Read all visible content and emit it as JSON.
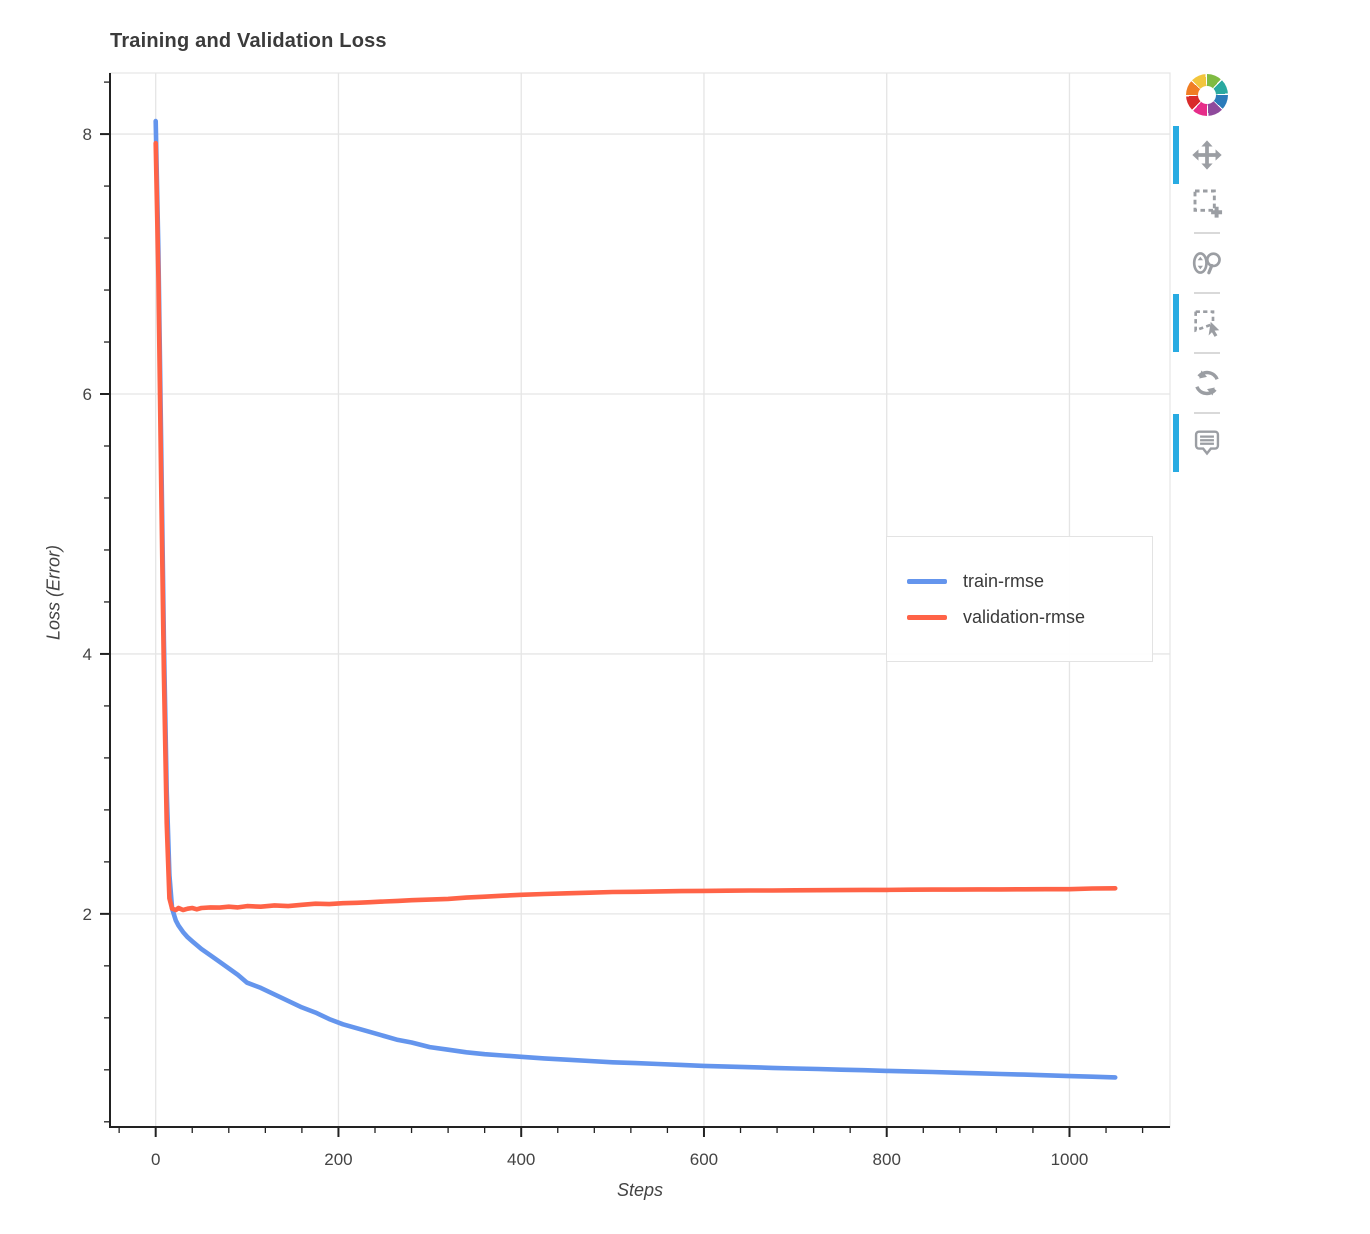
{
  "title": "Training and Validation Loss",
  "colors": {
    "grid": "#e5e5e5",
    "outline": "#e5e5e5",
    "axis_line": "#222222",
    "tick_label": "#444444",
    "title_text": "#3b3b3b",
    "toolbar_icon": "#9b9ea3"
  },
  "legend": {
    "items": [
      {
        "label": "train-rmse"
      },
      {
        "label": "validation-rmse"
      }
    ]
  },
  "toolbar": {
    "active_color": "#28abe2",
    "tools": [
      {
        "name": "pan",
        "active": true
      },
      {
        "name": "box-zoom",
        "active": false
      },
      {
        "name": "wheel-zoom",
        "active": false
      },
      {
        "name": "box-select",
        "active": true
      },
      {
        "name": "reset",
        "active": false
      },
      {
        "name": "hover",
        "active": true
      }
    ]
  },
  "chart_data": {
    "type": "line",
    "title": "Training and Validation Loss",
    "xlabel": "Steps",
    "ylabel": "Loss (Error)",
    "xlim": [
      -50,
      1110
    ],
    "ylim": [
      0.36,
      8.47
    ],
    "xticks": [
      0,
      200,
      400,
      600,
      800,
      1000
    ],
    "yticks": [
      2,
      4,
      6,
      8
    ],
    "xtick_labels": [
      "0",
      "200",
      "400",
      "600",
      "800",
      "1000"
    ],
    "ytick_labels": [
      "2",
      "4",
      "6",
      "8"
    ],
    "x_minor_dtick": 40,
    "y_minor_dtick": 0.4,
    "grid": true,
    "legend_position": "inside-right",
    "x": [
      0,
      3,
      6,
      9,
      12,
      15,
      18,
      22,
      25,
      30,
      35,
      40,
      45,
      50,
      60,
      70,
      80,
      90,
      100,
      115,
      130,
      145,
      160,
      175,
      190,
      205,
      220,
      235,
      250,
      265,
      280,
      300,
      320,
      340,
      360,
      380,
      400,
      425,
      450,
      475,
      500,
      525,
      550,
      575,
      600,
      625,
      650,
      675,
      700,
      725,
      750,
      775,
      800,
      825,
      850,
      875,
      900,
      925,
      950,
      975,
      1000,
      1025,
      1050
    ],
    "series": [
      {
        "name": "train-rmse",
        "color": "#6495ED",
        "values": [
          8.1,
          7.1,
          5.6,
          4.1,
          2.95,
          2.3,
          2.04,
          1.95,
          1.91,
          1.86,
          1.82,
          1.79,
          1.76,
          1.73,
          1.68,
          1.63,
          1.58,
          1.53,
          1.47,
          1.43,
          1.38,
          1.33,
          1.28,
          1.24,
          1.19,
          1.15,
          1.12,
          1.09,
          1.06,
          1.03,
          1.01,
          0.975,
          0.955,
          0.935,
          0.92,
          0.91,
          0.9,
          0.888,
          0.878,
          0.868,
          0.858,
          0.852,
          0.845,
          0.838,
          0.83,
          0.825,
          0.82,
          0.815,
          0.81,
          0.806,
          0.801,
          0.797,
          0.792,
          0.788,
          0.783,
          0.778,
          0.773,
          0.768,
          0.763,
          0.758,
          0.752,
          0.747,
          0.742
        ]
      },
      {
        "name": "validation-rmse",
        "color": "#FF6347",
        "values": [
          7.93,
          6.9,
          5.3,
          3.85,
          2.7,
          2.12,
          2.04,
          2.03,
          2.045,
          2.03,
          2.04,
          2.045,
          2.035,
          2.045,
          2.05,
          2.048,
          2.055,
          2.05,
          2.06,
          2.055,
          2.065,
          2.06,
          2.07,
          2.078,
          2.075,
          2.082,
          2.085,
          2.09,
          2.095,
          2.1,
          2.105,
          2.11,
          2.115,
          2.125,
          2.132,
          2.14,
          2.147,
          2.153,
          2.158,
          2.163,
          2.168,
          2.17,
          2.173,
          2.175,
          2.177,
          2.178,
          2.18,
          2.18,
          2.181,
          2.182,
          2.183,
          2.184,
          2.184,
          2.186,
          2.187,
          2.187,
          2.188,
          2.188,
          2.189,
          2.19,
          2.19,
          2.195,
          2.197
        ]
      }
    ]
  }
}
